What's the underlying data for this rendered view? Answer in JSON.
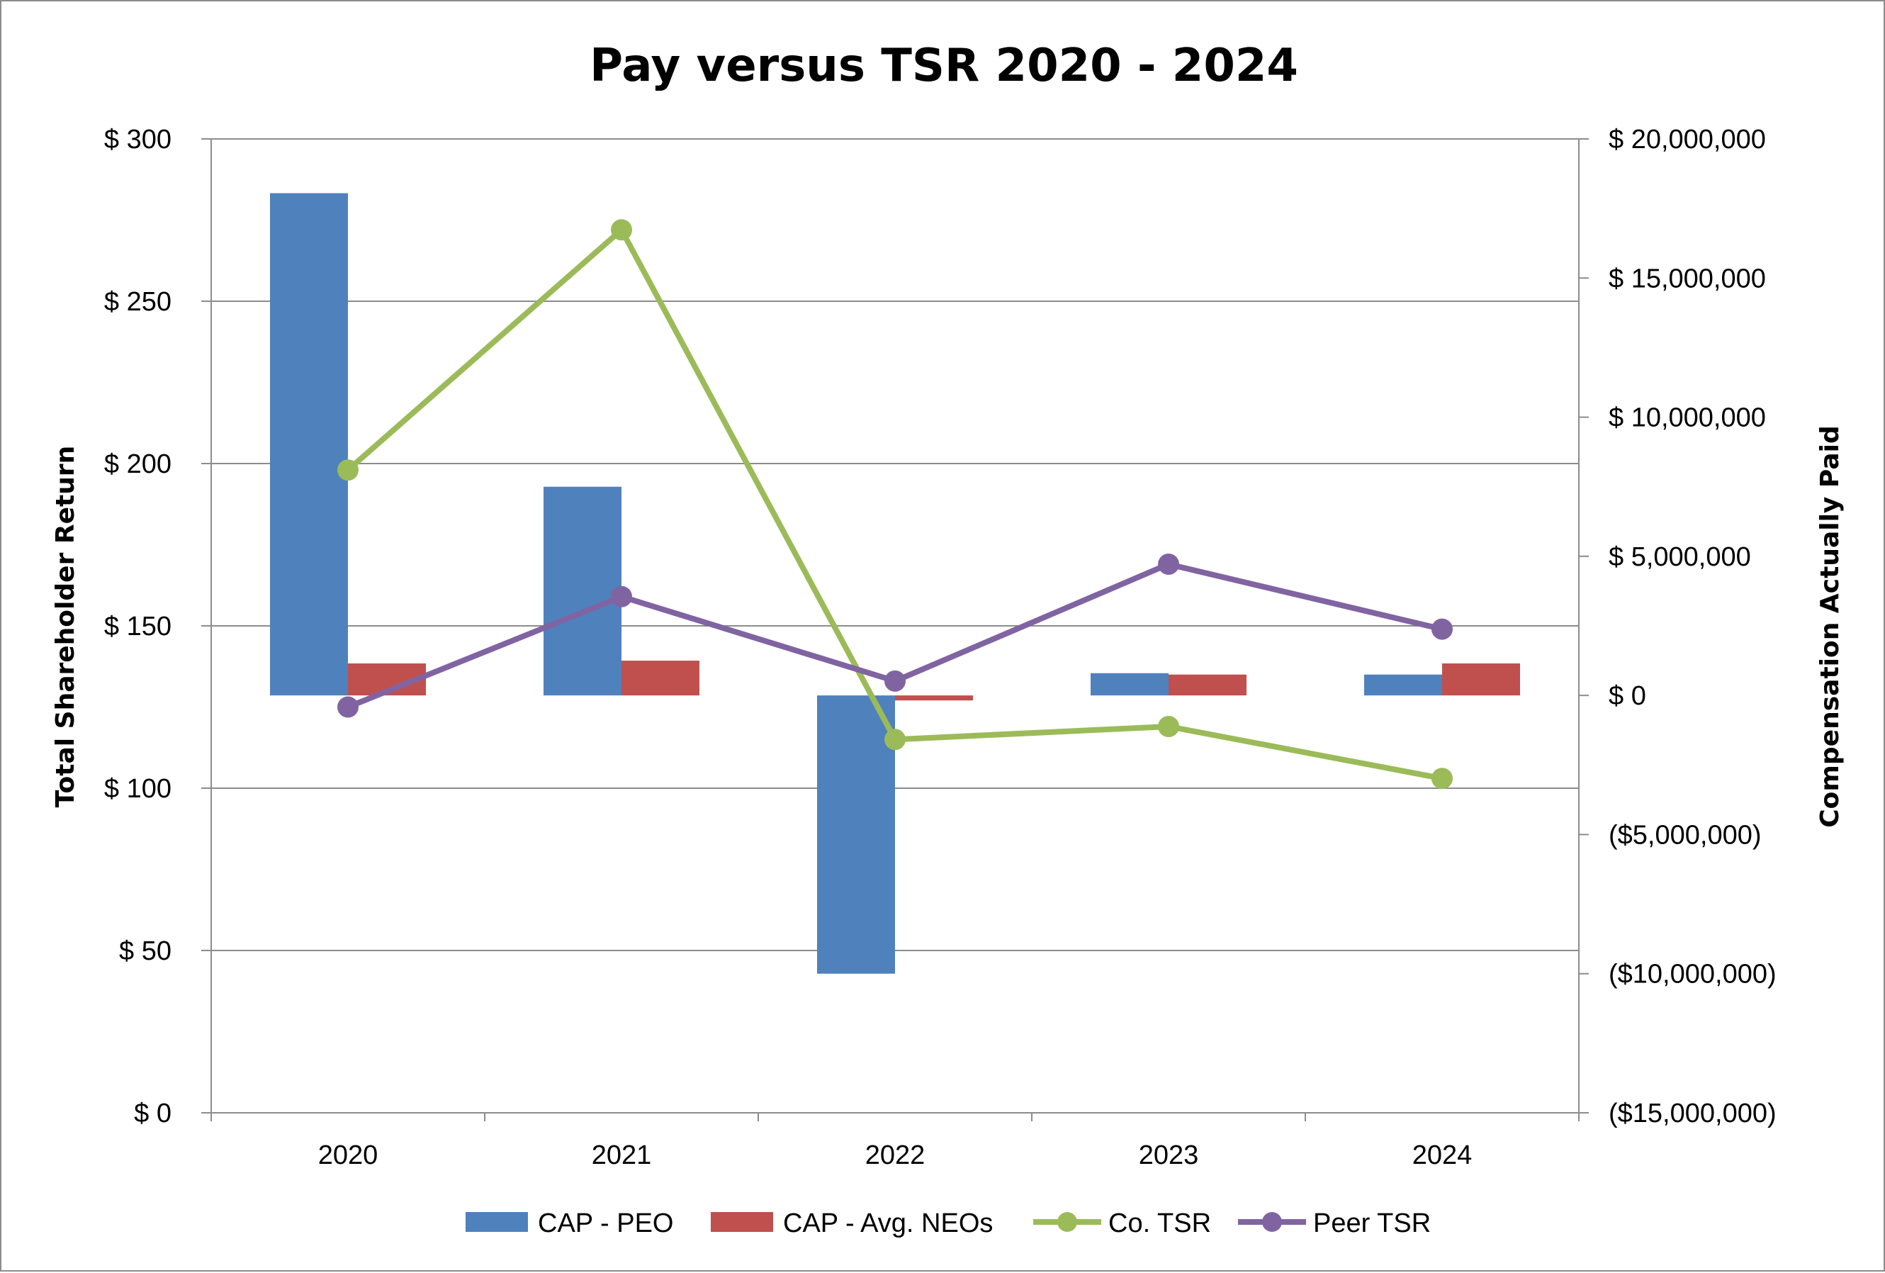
{
  "chart_data": {
    "type": "bar",
    "title": "Pay versus TSR 2020 - 2024",
    "categories": [
      "2020",
      "2021",
      "2022",
      "2023",
      "2024"
    ],
    "y_left": {
      "label": "Total Shareholder Return",
      "range": [
        0,
        300
      ],
      "ticks": [
        0,
        50,
        100,
        150,
        200,
        250,
        300
      ],
      "tick_labels": [
        "$  0",
        "$  50",
        "$  100",
        "$  150",
        "$  200",
        "$  250",
        "$  300"
      ]
    },
    "y_right": {
      "label": "Compensation Actually Paid",
      "range": [
        -15000000,
        20000000
      ],
      "ticks": [
        -15000000,
        -10000000,
        -5000000,
        0,
        5000000,
        10000000,
        15000000,
        20000000
      ],
      "tick_labels": [
        "($15,000,000)",
        "($10,000,000)",
        "($5,000,000)",
        "$  0",
        "$  5,000,000",
        "$  10,000,000",
        "$  15,000,000",
        "$  20,000,000"
      ]
    },
    "grid": true,
    "legend_position": "bottom",
    "series": [
      {
        "name": "CAP - PEO",
        "kind": "bar",
        "axis": "right",
        "color": "#4f81bd",
        "values": [
          18050000,
          7500000,
          -10000000,
          800000,
          750000
        ]
      },
      {
        "name": "CAP - Avg. NEOs",
        "kind": "bar",
        "axis": "right",
        "color": "#c0504d",
        "values": [
          1150000,
          1250000,
          -180000,
          750000,
          1150000
        ]
      },
      {
        "name": "Co. TSR",
        "kind": "line",
        "axis": "left",
        "color": "#9bbb59",
        "values": [
          198,
          272,
          115,
          119,
          103
        ]
      },
      {
        "name": "Peer TSR",
        "kind": "line",
        "axis": "left",
        "color": "#8064a2",
        "values": [
          125,
          159,
          133,
          169,
          149
        ]
      }
    ]
  }
}
